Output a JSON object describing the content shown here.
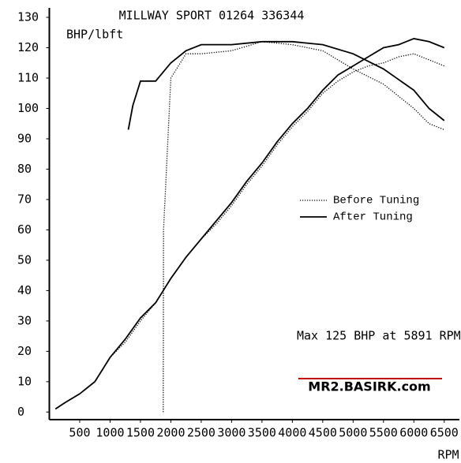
{
  "chart_data": {
    "type": "line",
    "title": "MILLWAY SPORT 01264 336344",
    "y_label": "BHP/lbft",
    "x_label": "RPM",
    "annotation": "Max 125 BHP at 5891 RPM",
    "watermark": "MR2.BASIRK.com",
    "xlim": [
      0,
      6750
    ],
    "ylim": [
      -2.5,
      130
    ],
    "xticks": [
      500,
      1000,
      1500,
      2000,
      2500,
      3000,
      3500,
      4000,
      4500,
      5000,
      5500,
      6000,
      6500
    ],
    "yticks": [
      0,
      10,
      20,
      30,
      40,
      50,
      60,
      70,
      80,
      90,
      100,
      110,
      120,
      130
    ],
    "series": [
      {
        "name": "Before Tuning",
        "color": "#000000",
        "style": "dotted",
        "lines": [
          {
            "x": [
              100,
              250,
              500,
              750,
              1000,
              1250,
              1500,
              1750,
              2000,
              2250,
              2500,
              2750,
              3000,
              3250,
              3500,
              3750,
              4000,
              4250,
              4500,
              4750,
              5000,
              5250,
              5500,
              5750,
              6000,
              6250,
              6500
            ],
            "values": [
              1,
              3,
              6,
              10,
              18,
              23,
              30,
              36,
              44,
              51,
              57,
              62,
              68,
              75,
              81,
              88,
              94,
              99,
              105,
              109,
              112,
              114,
              115,
              117,
              118,
              116,
              114
            ]
          },
          {
            "x": [
              1875,
              1880,
              2000,
              2250,
              2500,
              3000,
              3500,
              4000,
              4500,
              5000,
              5500,
              6000,
              6250,
              6500
            ],
            "values": [
              0,
              60,
              110,
              118,
              118,
              119,
              122,
              121,
              119,
              113,
              108,
              100,
              95,
              93
            ]
          }
        ]
      },
      {
        "name": "After Tuning",
        "color": "#000000",
        "style": "solid",
        "lines": [
          {
            "x": [
              100,
              250,
              500,
              750,
              1000,
              1250,
              1500,
              1750,
              2000,
              2250,
              2500,
              2750,
              3000,
              3250,
              3500,
              3750,
              4000,
              4250,
              4500,
              4750,
              5000,
              5250,
              5500,
              5750,
              6000,
              6250,
              6500
            ],
            "values": [
              1,
              3,
              6,
              10,
              18,
              24,
              31,
              36,
              44,
              51,
              57,
              63,
              69,
              76,
              82,
              89,
              95,
              100,
              106,
              111,
              114,
              117,
              120,
              121,
              123,
              122,
              120
            ]
          },
          {
            "x": [
              1300,
              1375,
              1500,
              1750,
              2000,
              2250,
              2500,
              3000,
              3500,
              4000,
              4500,
              5000,
              5500,
              6000,
              6250,
              6500
            ],
            "values": [
              93,
              101,
              109,
              109,
              115,
              119,
              121,
              121,
              122,
              122,
              121,
              118,
              113,
              106,
              100,
              96
            ]
          }
        ]
      }
    ]
  }
}
